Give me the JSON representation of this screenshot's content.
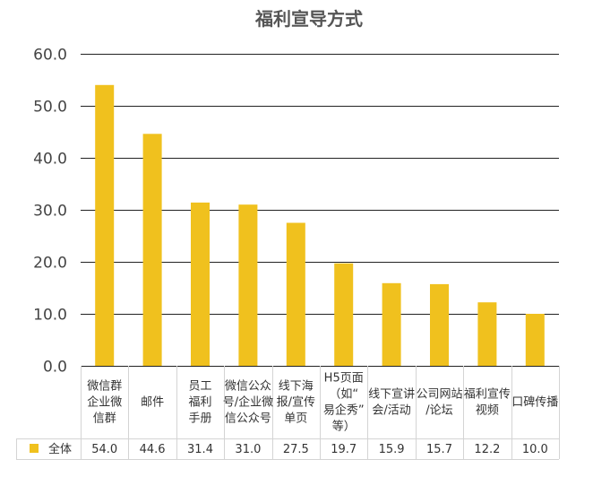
{
  "chart_data": {
    "type": "bar",
    "title": "福利宣导方式",
    "xlabel": "",
    "ylabel": "",
    "ylim": [
      0,
      60
    ],
    "yticks": [
      "0.0",
      "10.0",
      "20.0",
      "30.0",
      "40.0",
      "50.0",
      "60.0"
    ],
    "grid": true,
    "bar_color": "#F0C11E",
    "categories": [
      [
        "微信群",
        "企业微",
        "信群"
      ],
      [
        "邮件"
      ],
      [
        "员工",
        "福利",
        "手册"
      ],
      [
        "微信公众",
        "号/企业微",
        "信公众号"
      ],
      [
        "线下海",
        "报/宣传",
        "单页"
      ],
      [
        "H5页面",
        "（如“",
        "易企秀”",
        "等）"
      ],
      [
        "线下宣讲",
        "会/活动"
      ],
      [
        "公司网站",
        "/论坛"
      ],
      [
        "福利宣传",
        "视频"
      ],
      [
        "口碑传播"
      ]
    ],
    "series": [
      {
        "name": "全体",
        "values": [
          54.0,
          44.6,
          31.4,
          31.0,
          27.5,
          19.7,
          15.9,
          15.7,
          12.2,
          10.0
        ],
        "labels": [
          "54.0",
          "44.6",
          "31.4",
          "31.0",
          "27.5",
          "19.7",
          "15.9",
          "15.7",
          "12.2",
          "10.0"
        ]
      }
    ]
  }
}
